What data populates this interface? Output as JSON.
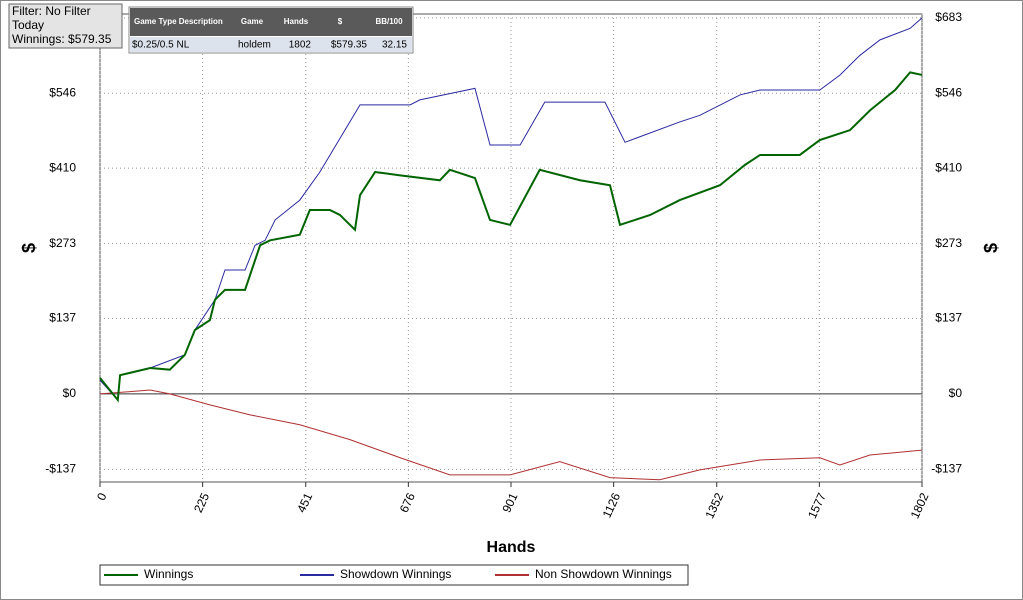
{
  "filter": {
    "lines": [
      "Filter: No Filter",
      "Today",
      "Winnings: $579.35"
    ]
  },
  "table": {
    "headers": [
      "Game Type Description",
      "Game",
      "Hands",
      "$",
      "BB/100"
    ],
    "rows": [
      [
        "$0.25/0.5 NL",
        "holdem",
        "1802",
        "$579.35",
        "32.15"
      ]
    ]
  },
  "chart_data": {
    "type": "line",
    "xlabel": "Hands",
    "ylabel": "$",
    "y2label": "$",
    "xlim": [
      0,
      1802
    ],
    "ylim": [
      -160,
      690
    ],
    "xticks": [
      0,
      225,
      451,
      676,
      901,
      1126,
      1352,
      1577,
      1802
    ],
    "yticks": [
      {
        "value": -137,
        "label": "-$137"
      },
      {
        "value": 0,
        "label": "$0"
      },
      {
        "value": 137,
        "label": "$137"
      },
      {
        "value": 273,
        "label": "$273"
      },
      {
        "value": 410,
        "label": "$410"
      },
      {
        "value": 546,
        "label": "$546"
      },
      {
        "value": 683,
        "label": "$683"
      }
    ],
    "grid": true,
    "series": [
      {
        "name": "Winnings",
        "color": "#006400",
        "x": [
          0,
          39,
          44,
          110,
          153,
          186,
          208,
          241,
          252,
          274,
          318,
          351,
          373,
          438,
          460,
          504,
          526,
          559,
          570,
          603,
          658,
          745,
          767,
          822,
          855,
          899,
          964,
          1052,
          1118,
          1140,
          1206,
          1271,
          1359,
          1414,
          1447,
          1534,
          1578,
          1644,
          1688,
          1743,
          1776,
          1802
        ],
        "values": [
          29,
          -11,
          34,
          47,
          44,
          71,
          116,
          134,
          171,
          189,
          189,
          270,
          279,
          289,
          334,
          334,
          325,
          298,
          361,
          403,
          397,
          388,
          407,
          392,
          316,
          307,
          407,
          388,
          379,
          307,
          325,
          352,
          379,
          416,
          434,
          434,
          461,
          479,
          515,
          552,
          584,
          579.35
        ]
      },
      {
        "name": "Showdown Winnings",
        "color": "#2a2aa0",
        "x": [
          0,
          39,
          44,
          110,
          186,
          208,
          252,
          274,
          318,
          340,
          362,
          384,
          438,
          482,
          570,
          680,
          701,
          822,
          855,
          921,
          975,
          1107,
          1151,
          1271,
          1315,
          1403,
          1447,
          1578,
          1622,
          1666,
          1710,
          1776,
          1802
        ],
        "values": [
          25,
          -11,
          34,
          47,
          71,
          116,
          171,
          225,
          225,
          270,
          279,
          316,
          352,
          403,
          525,
          525,
          534,
          555,
          452,
          452,
          530,
          530,
          457,
          494,
          506,
          543,
          552,
          552,
          579,
          615,
          643,
          664,
          683
        ]
      },
      {
        "name": "Non Showdown Winnings",
        "color": "#b03030",
        "x": [
          0,
          110,
          153,
          241,
          329,
          438,
          548,
          658,
          767,
          899,
          1008,
          1118,
          1227,
          1315,
          1447,
          1578,
          1622,
          1688,
          1802
        ],
        "values": [
          0,
          7,
          0,
          -20,
          -38,
          -56,
          -83,
          -116,
          -147,
          -147,
          -123,
          -152,
          -156,
          -138,
          -120,
          -116,
          -129,
          -111,
          -102
        ]
      }
    ]
  }
}
